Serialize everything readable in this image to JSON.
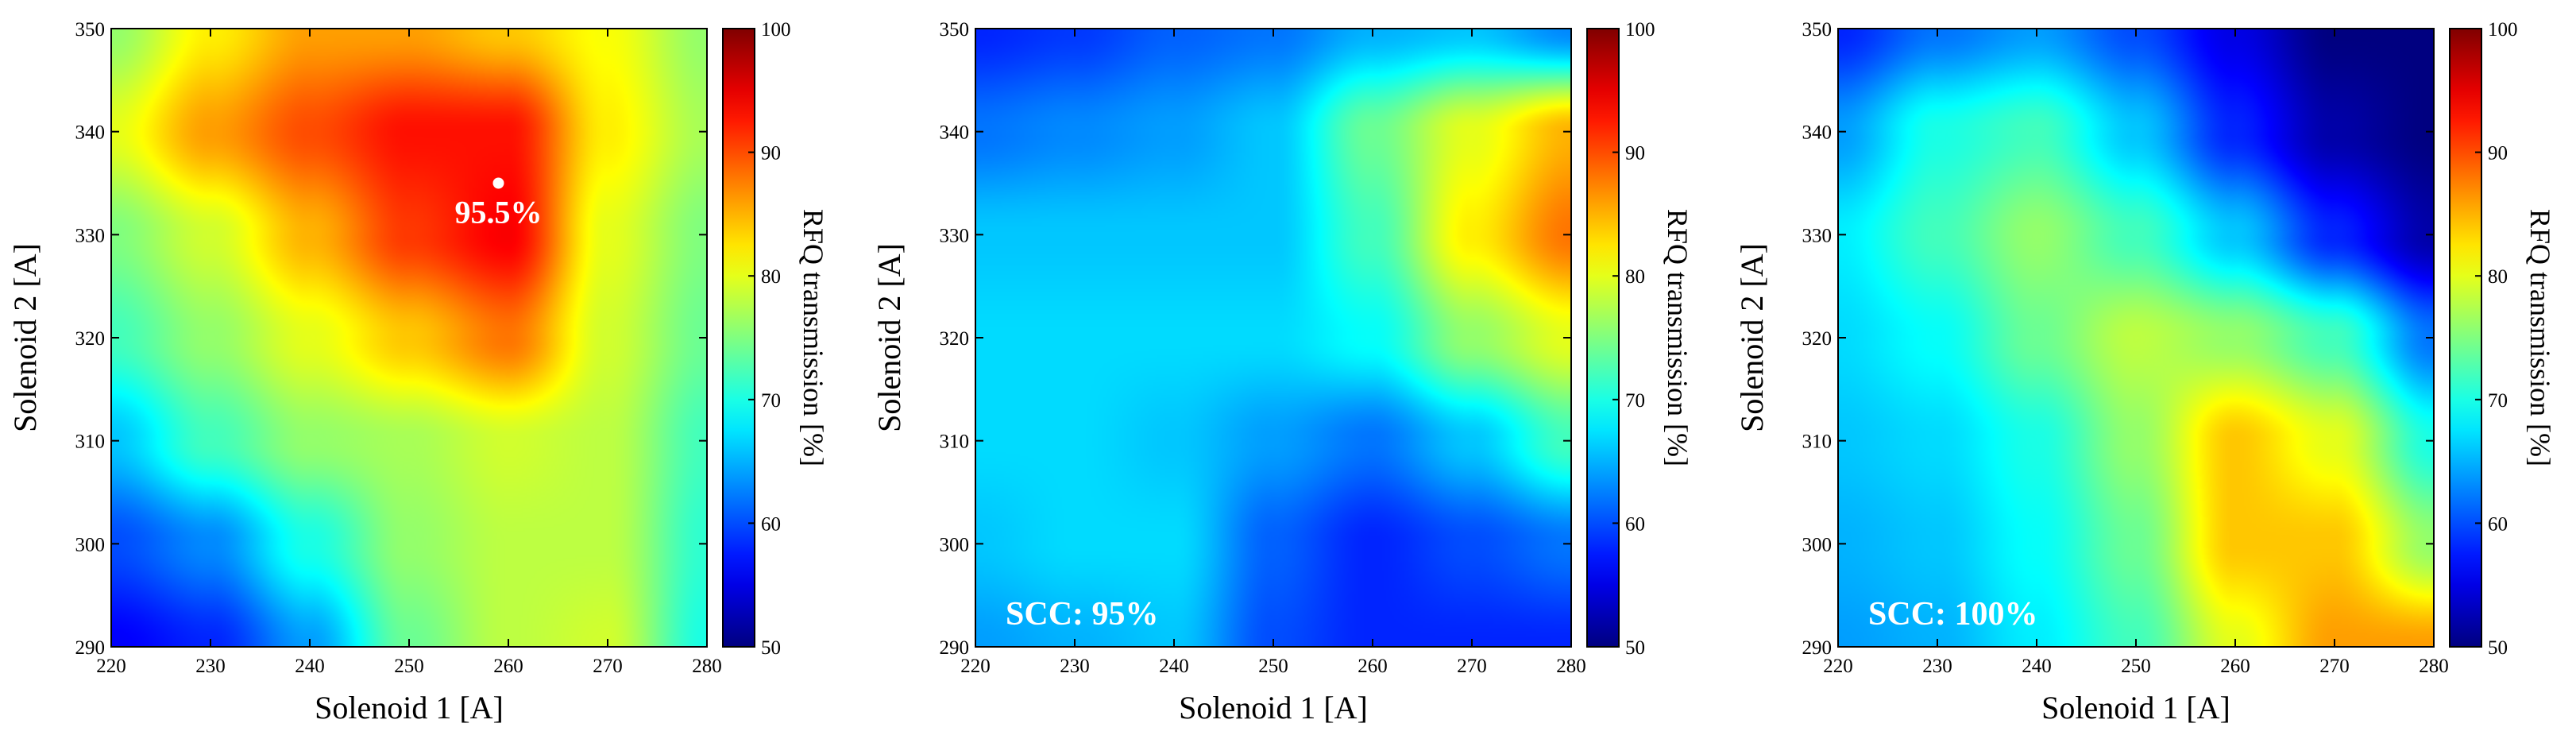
{
  "chart_data": [
    {
      "type": "heatmap",
      "xlabel": "Solenoid 1  [A]",
      "ylabel": "Solenoid 2  [A]",
      "colorbar_label": "RFQ transmission  [%]",
      "xlim": [
        220,
        280
      ],
      "ylim": [
        290,
        350
      ],
      "clim": [
        50,
        100
      ],
      "x_ticks": [
        "220",
        "230",
        "240",
        "250",
        "260",
        "270",
        "280"
      ],
      "y_ticks": [
        "290",
        "300",
        "310",
        "320",
        "330",
        "340",
        "350"
      ],
      "c_ticks": [
        "50",
        "60",
        "70",
        "80",
        "90",
        "100"
      ],
      "colormap": "jet",
      "annotation": "",
      "marker": {
        "x": 259,
        "y": 335,
        "label": "95.5%"
      },
      "z": [
        [
          56,
          58,
          64,
          74,
          78,
          79,
          70
        ],
        [
          60,
          63,
          70,
          76,
          78,
          78,
          71
        ],
        [
          66,
          72,
          76,
          77,
          79,
          78,
          72
        ],
        [
          72,
          76,
          80,
          84,
          88,
          79,
          74
        ],
        [
          75,
          79,
          85,
          91,
          94,
          80,
          75
        ],
        [
          80,
          86,
          90,
          93,
          93,
          82,
          77
        ],
        [
          76,
          82,
          86,
          86,
          84,
          81,
          76
        ]
      ]
    },
    {
      "type": "heatmap",
      "xlabel": "Solenoid 1  [A]",
      "ylabel": "Solenoid 2  [A]",
      "colorbar_label": "RFQ transmission  [%]",
      "xlim": [
        220,
        280
      ],
      "ylim": [
        290,
        350
      ],
      "clim": [
        50,
        100
      ],
      "x_ticks": [
        "220",
        "230",
        "240",
        "250",
        "260",
        "270",
        "280"
      ],
      "y_ticks": [
        "290",
        "300",
        "310",
        "320",
        "330",
        "340",
        "350"
      ],
      "c_ticks": [
        "50",
        "60",
        "70",
        "80",
        "90",
        "100"
      ],
      "colormap": "jet",
      "annotation": "SCC: 95%",
      "z": [
        [
          64,
          65,
          66,
          60,
          58,
          58,
          58
        ],
        [
          66,
          67,
          67,
          61,
          58,
          60,
          62
        ],
        [
          67,
          67,
          66,
          64,
          62,
          66,
          72
        ],
        [
          67,
          67,
          67,
          67,
          69,
          76,
          80
        ],
        [
          66,
          66,
          66,
          66,
          72,
          82,
          88
        ],
        [
          62,
          63,
          64,
          66,
          74,
          80,
          85
        ],
        [
          58,
          59,
          61,
          62,
          65,
          66,
          63
        ]
      ]
    },
    {
      "type": "heatmap",
      "xlabel": "Solenoid 1  [A]",
      "ylabel": "Solenoid 2  [A]",
      "colorbar_label": "RFQ transmission  [%]",
      "xlim": [
        220,
        280
      ],
      "ylim": [
        290,
        350
      ],
      "clim": [
        50,
        100
      ],
      "x_ticks": [
        "220",
        "230",
        "240",
        "250",
        "260",
        "270",
        "280"
      ],
      "y_ticks": [
        "290",
        "300",
        "310",
        "320",
        "330",
        "340",
        "350"
      ],
      "c_ticks": [
        "50",
        "60",
        "70",
        "80",
        "90",
        "100"
      ],
      "colormap": "jet",
      "annotation": "SCC: 100%",
      "z": [
        [
          64,
          65,
          68,
          72,
          80,
          86,
          86
        ],
        [
          65,
          66,
          69,
          74,
          84,
          84,
          76
        ],
        [
          66,
          67,
          70,
          76,
          84,
          80,
          70
        ],
        [
          67,
          69,
          74,
          78,
          76,
          72,
          62
        ],
        [
          68,
          72,
          76,
          72,
          66,
          58,
          52
        ],
        [
          64,
          70,
          72,
          66,
          58,
          52,
          50
        ],
        [
          58,
          62,
          64,
          60,
          55,
          50,
          50
        ]
      ]
    }
  ]
}
